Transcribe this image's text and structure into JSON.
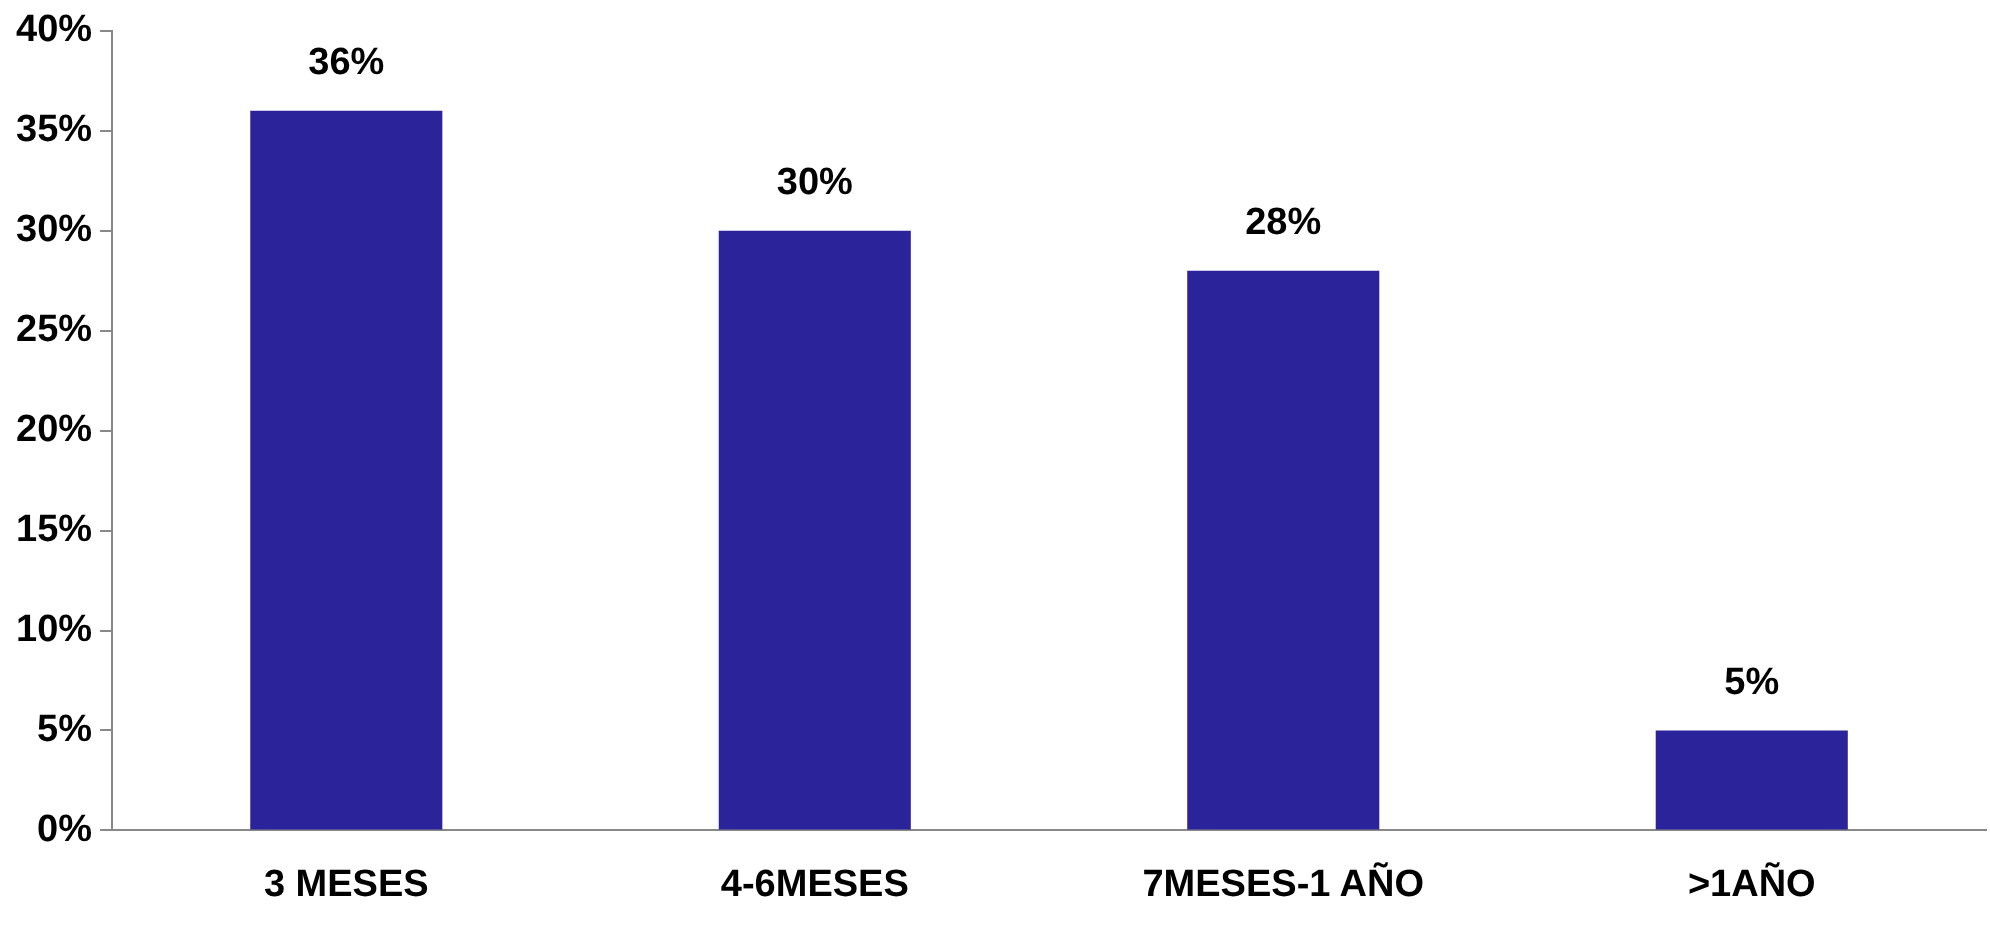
{
  "chart_data": {
    "type": "bar",
    "categories": [
      "3 MESES",
      "4-6MESES",
      "7MESES-1 AÑO",
      ">1AÑO"
    ],
    "values": [
      36,
      30,
      28,
      5
    ],
    "color": "#2a2399",
    "value_labels": [
      "36%",
      "30%",
      "28%",
      "5%"
    ],
    "ylim": [
      0,
      40
    ],
    "yticks": [
      {
        "value": 0,
        "label": "0%"
      },
      {
        "value": 5,
        "label": "5%"
      },
      {
        "value": 10,
        "label": "10%"
      },
      {
        "value": 15,
        "label": "15%"
      },
      {
        "value": 20,
        "label": "20%"
      },
      {
        "value": 25,
        "label": "25%"
      },
      {
        "value": 30,
        "label": "30%"
      },
      {
        "value": 35,
        "label": "35%"
      },
      {
        "value": 40,
        "label": "40%"
      }
    ],
    "grid": false,
    "legend": false
  }
}
